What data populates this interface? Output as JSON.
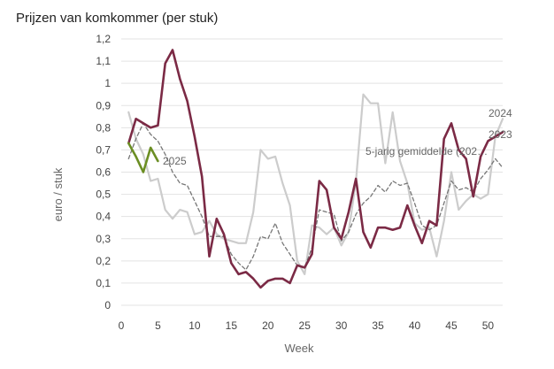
{
  "chart_data": {
    "type": "line",
    "title": "Prijzen van komkommer (per stuk)",
    "xlabel": "Week",
    "ylabel": "euro / stuk",
    "xlim": [
      0,
      52
    ],
    "ylim": [
      0,
      1.2
    ],
    "x_ticks": [
      0,
      5,
      10,
      15,
      20,
      25,
      30,
      35,
      40,
      45,
      50
    ],
    "y_ticks": [
      0,
      0.1,
      0.2,
      0.3,
      0.4,
      0.5,
      0.6,
      0.7,
      0.8,
      0.9,
      1,
      1.1,
      1.2
    ],
    "y_tick_labels": [
      "0",
      "0,1",
      "0,2",
      "0,3",
      "0,4",
      "0,5",
      "0,6",
      "0,7",
      "0,8",
      "0,9",
      "1",
      "1,1",
      "1,2"
    ],
    "grid": "horizontal",
    "series": [
      {
        "name": "2024",
        "color": "#cccccc",
        "style": "solid",
        "x": [
          1,
          2,
          3,
          4,
          5,
          6,
          7,
          8,
          9,
          10,
          11,
          12,
          13,
          14,
          15,
          16,
          17,
          18,
          19,
          20,
          21,
          22,
          23,
          24,
          25,
          26,
          27,
          28,
          29,
          30,
          31,
          32,
          33,
          34,
          35,
          36,
          37,
          38,
          39,
          40,
          41,
          42,
          43,
          44,
          45,
          46,
          47,
          48,
          49,
          50,
          51,
          52
        ],
        "values": [
          0.87,
          0.75,
          0.68,
          0.56,
          0.57,
          0.43,
          0.39,
          0.43,
          0.42,
          0.32,
          0.33,
          0.38,
          0.32,
          0.3,
          0.29,
          0.28,
          0.28,
          0.42,
          0.7,
          0.66,
          0.67,
          0.55,
          0.45,
          0.2,
          0.14,
          0.36,
          0.35,
          0.32,
          0.35,
          0.27,
          0.33,
          0.56,
          0.95,
          0.91,
          0.91,
          0.64,
          0.87,
          0.65,
          0.55,
          0.37,
          0.34,
          0.35,
          0.22,
          0.38,
          0.6,
          0.43,
          0.47,
          0.5,
          0.48,
          0.5,
          0.76,
          0.84
        ]
      },
      {
        "name": "2023",
        "color": "#777777",
        "style": "dashed",
        "x": [
          1,
          2,
          3,
          4,
          5,
          6,
          7,
          8,
          9,
          10,
          11,
          12,
          13,
          14,
          15,
          16,
          17,
          18,
          19,
          20,
          21,
          22,
          23,
          24,
          25,
          26,
          27,
          28,
          29,
          30,
          31,
          32,
          33,
          34,
          35,
          36,
          37,
          38,
          39,
          40,
          41,
          42,
          43,
          44,
          45,
          46,
          47,
          48,
          49,
          50,
          51,
          52
        ],
        "values": [
          0.66,
          0.75,
          0.82,
          0.77,
          0.74,
          0.68,
          0.6,
          0.55,
          0.54,
          0.47,
          0.4,
          0.31,
          0.31,
          0.31,
          0.23,
          0.19,
          0.16,
          0.22,
          0.31,
          0.3,
          0.37,
          0.28,
          0.23,
          0.18,
          0.17,
          0.26,
          0.43,
          0.42,
          0.41,
          0.29,
          0.33,
          0.41,
          0.46,
          0.49,
          0.54,
          0.51,
          0.56,
          0.54,
          0.55,
          0.46,
          0.36,
          0.34,
          0.36,
          0.46,
          0.56,
          0.52,
          0.53,
          0.51,
          0.57,
          0.61,
          0.66,
          0.62
        ]
      },
      {
        "name": "5-jarig gemiddelde (2020-2024)",
        "label_text": "5-jarig gemiddelde (202…",
        "color": "#7b2a45",
        "style": "solid",
        "x": [
          1,
          2,
          3,
          4,
          5,
          6,
          7,
          8,
          9,
          10,
          11,
          12,
          13,
          14,
          15,
          16,
          17,
          18,
          19,
          20,
          21,
          22,
          23,
          24,
          25,
          26,
          27,
          28,
          29,
          30,
          31,
          32,
          33,
          34,
          35,
          36,
          37,
          38,
          39,
          40,
          41,
          42,
          43,
          44,
          45,
          46,
          47,
          48,
          49,
          50,
          51,
          52
        ],
        "values": [
          0.73,
          0.84,
          0.82,
          0.8,
          0.81,
          1.09,
          1.15,
          1.02,
          0.92,
          0.76,
          0.58,
          0.22,
          0.39,
          0.32,
          0.19,
          0.14,
          0.15,
          0.12,
          0.08,
          0.11,
          0.12,
          0.12,
          0.1,
          0.18,
          0.17,
          0.23,
          0.56,
          0.52,
          0.35,
          0.3,
          0.42,
          0.57,
          0.33,
          0.26,
          0.35,
          0.35,
          0.34,
          0.35,
          0.45,
          0.36,
          0.28,
          0.38,
          0.36,
          0.75,
          0.82,
          0.7,
          0.66,
          0.49,
          0.67,
          0.74,
          0.76,
          0.78
        ]
      },
      {
        "name": "2025",
        "color": "#6b8e23",
        "style": "solid",
        "x": [
          1,
          2,
          3,
          4,
          5
        ],
        "values": [
          0.73,
          0.67,
          0.6,
          0.71,
          0.65
        ]
      }
    ],
    "series_labels": [
      {
        "series": 2,
        "text": "5-jarig gemiddelde (202…"
      },
      {
        "series": 0,
        "text": "2024"
      },
      {
        "series": 1,
        "text": "2023"
      },
      {
        "series": 3,
        "text": "2025"
      }
    ]
  }
}
